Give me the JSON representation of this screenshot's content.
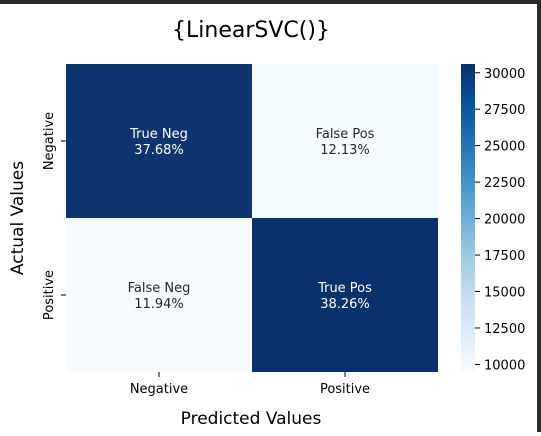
{
  "chart_data": {
    "type": "heatmap",
    "title": "{LinearSVC()}",
    "xlabel": "Predicted Values",
    "ylabel": "Actual Values",
    "x_categories": [
      "Negative",
      "Positive"
    ],
    "y_categories": [
      "Negative",
      "Positive"
    ],
    "cells": [
      [
        {
          "label": "True Neg",
          "percent": "37.68%",
          "value": 30150
        },
        {
          "label": "False Pos",
          "percent": "12.13%",
          "value": 9700
        }
      ],
      [
        {
          "label": "False Neg",
          "percent": "11.94%",
          "value": 9550
        },
        {
          "label": "True Pos",
          "percent": "38.26%",
          "value": 30600
        }
      ]
    ],
    "colormap": "Blues",
    "colors": {
      "low": "#f7fbff",
      "high": "#08306b"
    },
    "colorbar": {
      "range": [
        9550,
        30600
      ],
      "ticks": [
        10000,
        12500,
        15000,
        17500,
        20000,
        22500,
        25000,
        27500,
        30000
      ],
      "tick_labels": [
        "10000",
        "12500",
        "15000",
        "17500",
        "20000",
        "22500",
        "25000",
        "27500",
        "30000"
      ]
    }
  }
}
